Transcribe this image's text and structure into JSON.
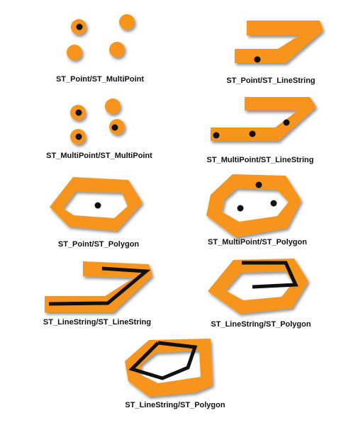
{
  "colors": {
    "shape_fill": "#f7941d",
    "shape_shadow": "#9a9a9a",
    "geometry_stroke": "#111111",
    "background": "#ffffff"
  },
  "panels": [
    {
      "id": "point-multipoint",
      "caption": "ST_Point/ST_MultiPoint"
    },
    {
      "id": "point-linestring",
      "caption": "ST_Point/ST_LineString"
    },
    {
      "id": "multipoint-multipoint",
      "caption": "ST_MultiPoint/ST_MultiPoint"
    },
    {
      "id": "multipoint-linestring",
      "caption": "ST_MultiPoint/ST_LineString"
    },
    {
      "id": "point-polygon",
      "caption": "ST_Point/ST_Polygon"
    },
    {
      "id": "multipoint-polygon",
      "caption": "ST_MultiPoint/ST_Polygon"
    },
    {
      "id": "linestring-linestring",
      "caption": "ST_LineString/ST_LineString"
    },
    {
      "id": "linestring-polygon",
      "caption": "ST_LineString/ST_Polygon"
    },
    {
      "id": "linestring-polygon-2",
      "caption": "ST_LineString/ST_Polygon"
    }
  ]
}
